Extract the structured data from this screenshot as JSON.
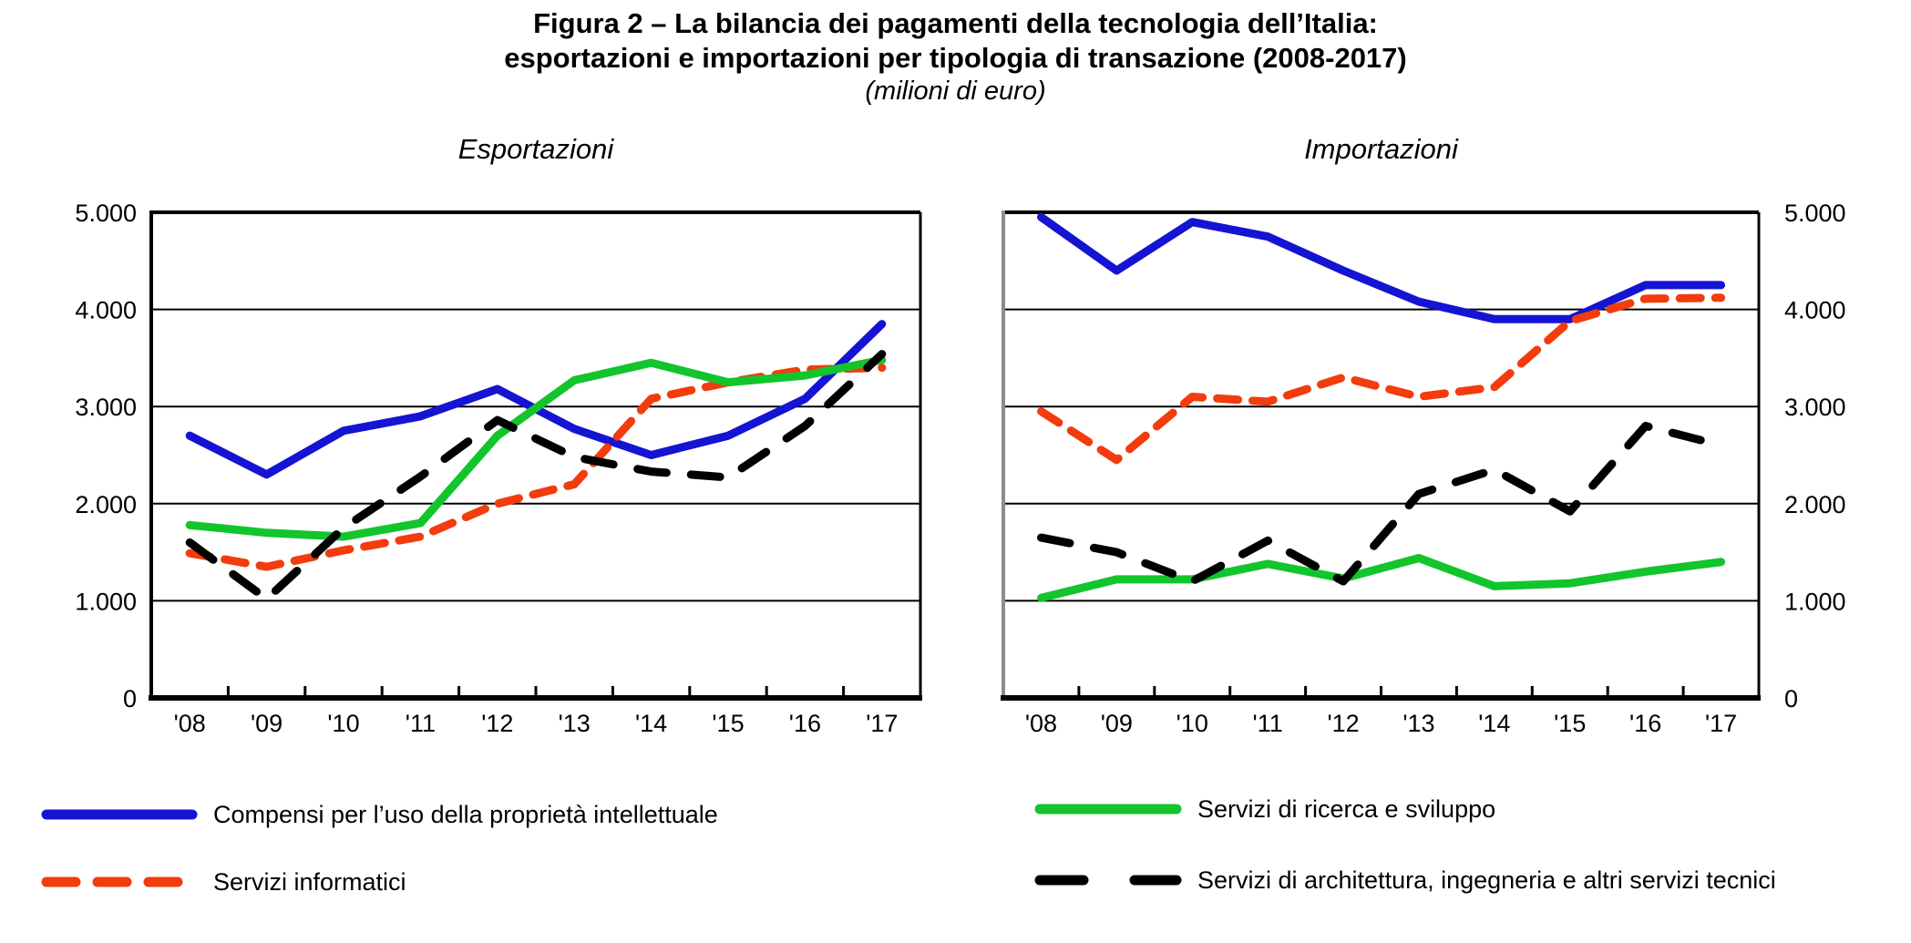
{
  "title": {
    "line1": "Figura 2 – La bilancia dei pagamenti della tecnologia dell’Italia:",
    "line2": "esportazioni e importazioni per tipologia di transazione (2008-2017)",
    "unit_subtitle": "(milioni di euro)"
  },
  "colors": {
    "blue": "#1414d2",
    "red": "#f23c0d",
    "green": "#12c52c",
    "black": "#000000",
    "axis_gray": "#8c8c8c"
  },
  "chart_data": [
    {
      "type": "line",
      "title": "Esportazioni",
      "categories": [
        "'08",
        "'09",
        "'10",
        "'11",
        "'12",
        "'13",
        "'14",
        "'15",
        "'16",
        "'17"
      ],
      "ylim": [
        0,
        5000
      ],
      "yticks": [
        "0",
        "1.000",
        "2.000",
        "3.000",
        "4.000",
        "5.000"
      ],
      "y_axis_side": "left",
      "grid": true,
      "legend_position": "below",
      "series": [
        {
          "name": "Compensi per l’uso della proprietà intellettuale",
          "color": "blue",
          "dash": false,
          "values": [
            2700,
            2300,
            2750,
            2900,
            3180,
            2770,
            2500,
            2700,
            3080,
            3850
          ]
        },
        {
          "name": "Servizi informatici",
          "color": "red",
          "dash": true,
          "values": [
            1490,
            1350,
            1520,
            1660,
            2000,
            2200,
            3080,
            3250,
            3380,
            3400
          ]
        },
        {
          "name": "Servizi di ricerca e sviluppo",
          "color": "green",
          "dash": false,
          "values": [
            1780,
            1700,
            1660,
            1800,
            2700,
            3270,
            3450,
            3250,
            3320,
            3480
          ]
        },
        {
          "name": "Servizi di architettura, ingegneria e altri servizi tecnici",
          "color": "black",
          "dash": true,
          "values": [
            1600,
            1020,
            1750,
            2280,
            2860,
            2480,
            2330,
            2270,
            2800,
            3540
          ]
        }
      ]
    },
    {
      "type": "line",
      "title": "Importazioni",
      "categories": [
        "'08",
        "'09",
        "'10",
        "'11",
        "'12",
        "'13",
        "'14",
        "'15",
        "'16",
        "'17"
      ],
      "ylim": [
        0,
        5000
      ],
      "yticks": [
        "0",
        "1.000",
        "2.000",
        "3.000",
        "4.000",
        "5.000"
      ],
      "y_axis_side": "right",
      "grid": true,
      "legend_position": "below",
      "series": [
        {
          "name": "Compensi per l’uso della proprietà intellettuale",
          "color": "blue",
          "dash": false,
          "values": [
            4950,
            4400,
            4900,
            4750,
            4400,
            4080,
            3900,
            3900,
            4250,
            4250
          ]
        },
        {
          "name": "Servizi informatici",
          "color": "red",
          "dash": true,
          "values": [
            2950,
            2450,
            3100,
            3050,
            3300,
            3100,
            3200,
            3880,
            4110,
            4120
          ]
        },
        {
          "name": "Servizi di ricerca e sviluppo",
          "color": "green",
          "dash": false,
          "values": [
            1030,
            1220,
            1220,
            1380,
            1230,
            1440,
            1150,
            1180,
            1300,
            1400
          ]
        },
        {
          "name": "Servizi di architettura, ingegneria e altri servizi tecnici",
          "color": "black",
          "dash": true,
          "values": [
            1650,
            1500,
            1200,
            1620,
            1200,
            2100,
            2350,
            1920,
            2800,
            2600
          ]
        }
      ]
    }
  ]
}
